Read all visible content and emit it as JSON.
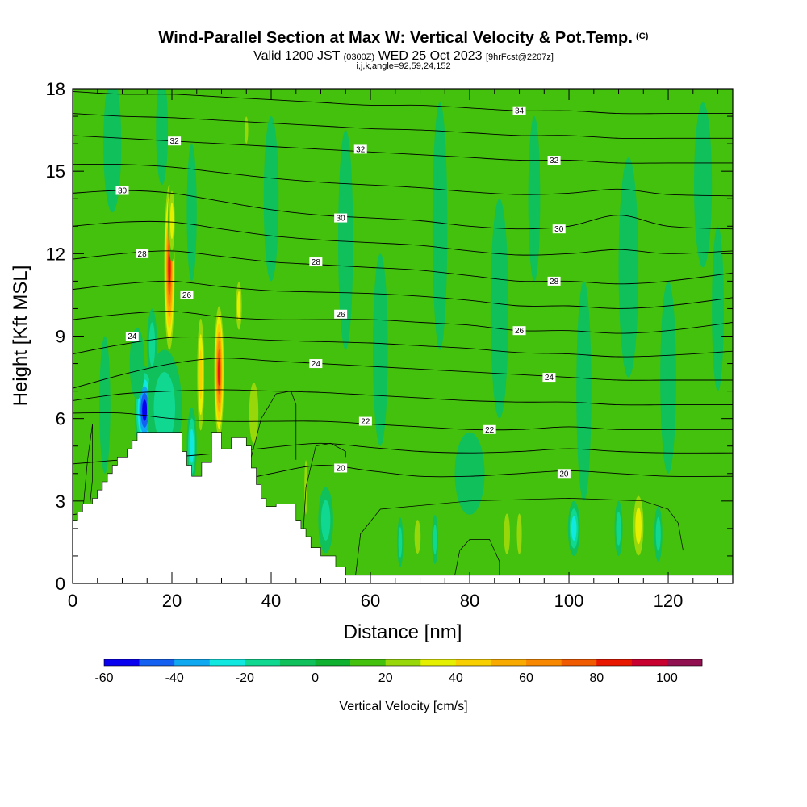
{
  "header": {
    "title": "Wind-Parallel Section at Max W: Vertical Velocity & Pot.Temp.",
    "title_suffix": "(C)",
    "valid_prefix": "Valid 1200 JST",
    "valid_zulu": "(0300Z)",
    "valid_date": "WED 25 Oct 2023",
    "forecast_tag": "[9hrFcst@2207z]",
    "params": "i,j,k,angle=92,59,24,152"
  },
  "chart_data": {
    "type": "heatmap",
    "xlabel": "Distance [nm]",
    "ylabel": "Height [Kft MSL]",
    "xlim": [
      0,
      133
    ],
    "ylim": [
      0,
      18
    ],
    "x_ticks": [
      "0",
      "20",
      "40",
      "60",
      "80",
      "100",
      "120"
    ],
    "y_ticks": [
      "0",
      "3",
      "6",
      "9",
      "12",
      "15",
      "18"
    ],
    "background_w_color": "#44c10c",
    "colorbar": {
      "label": "Vertical Velocity [cm/s]",
      "min": -60,
      "max": 110,
      "step": 10,
      "colors": [
        "#0a00f0",
        "#1460f0",
        "#10a8f0",
        "#10e8e0",
        "#10d890",
        "#10c05a",
        "#10b030",
        "#44c10c",
        "#98d80a",
        "#e4f000",
        "#f8d000",
        "#f8aa00",
        "#f88800",
        "#f05a00",
        "#e81800",
        "#c80030",
        "#901050"
      ],
      "tick_labels": [
        "-60",
        "-40",
        "-20",
        "0",
        "20",
        "40",
        "60",
        "80",
        "100"
      ]
    },
    "terrain": [
      {
        "x": 0,
        "h": 2.3
      },
      {
        "x": 1,
        "h": 2.6
      },
      {
        "x": 2,
        "h": 2.9
      },
      {
        "x": 4,
        "h": 3.1
      },
      {
        "x": 5,
        "h": 3.4
      },
      {
        "x": 6,
        "h": 3.7
      },
      {
        "x": 7,
        "h": 4.0
      },
      {
        "x": 8,
        "h": 4.3
      },
      {
        "x": 9,
        "h": 4.6
      },
      {
        "x": 11,
        "h": 4.9
      },
      {
        "x": 12,
        "h": 5.2
      },
      {
        "x": 13,
        "h": 5.5
      },
      {
        "x": 21,
        "h": 5.5
      },
      {
        "x": 22,
        "h": 4.8
      },
      {
        "x": 23,
        "h": 4.3
      },
      {
        "x": 24,
        "h": 3.9
      },
      {
        "x": 26,
        "h": 4.4
      },
      {
        "x": 28,
        "h": 5.5
      },
      {
        "x": 30,
        "h": 4.9
      },
      {
        "x": 32,
        "h": 5.3
      },
      {
        "x": 35,
        "h": 5.0
      },
      {
        "x": 36,
        "h": 4.2
      },
      {
        "x": 37,
        "h": 3.6
      },
      {
        "x": 38,
        "h": 3.1
      },
      {
        "x": 39,
        "h": 2.8
      },
      {
        "x": 41,
        "h": 2.9
      },
      {
        "x": 45,
        "h": 2.3
      },
      {
        "x": 46,
        "h": 2.0
      },
      {
        "x": 47,
        "h": 1.7
      },
      {
        "x": 48,
        "h": 1.3
      },
      {
        "x": 50,
        "h": 1.0
      },
      {
        "x": 53,
        "h": 0.6
      },
      {
        "x": 55,
        "h": 0.3
      },
      {
        "x": 133,
        "h": 0.3
      }
    ],
    "w_features": [
      {
        "x": 19.5,
        "y": 11.5,
        "rx": 1.2,
        "ry": 3.4,
        "w": 85
      },
      {
        "x": 20,
        "y": 13.2,
        "rx": 0.8,
        "ry": 1.5,
        "w": 35
      },
      {
        "x": 29.5,
        "y": 7.7,
        "rx": 1.1,
        "ry": 2.7,
        "w": 85
      },
      {
        "x": 25.8,
        "y": 7.6,
        "rx": 0.9,
        "ry": 2.6,
        "w": 42
      },
      {
        "x": 33.5,
        "y": 10.1,
        "rx": 0.8,
        "ry": 1.2,
        "w": 30
      },
      {
        "x": 36.5,
        "y": 6.2,
        "rx": 1.5,
        "ry": 1.8,
        "w": 25
      },
      {
        "x": 14.5,
        "y": 6.3,
        "rx": 2.0,
        "ry": 1.6,
        "w": -55
      },
      {
        "x": 20.6,
        "y": 6.5,
        "rx": 1.2,
        "ry": 1.3,
        "w": -55
      },
      {
        "x": 18.5,
        "y": 6.4,
        "rx": 3.5,
        "ry": 2.1,
        "w": -20
      },
      {
        "x": 11,
        "y": 5.8,
        "rx": 1.0,
        "ry": 1.4,
        "w": 18
      },
      {
        "x": 16,
        "y": 8.7,
        "rx": 1.0,
        "ry": 1.3,
        "w": -20
      },
      {
        "x": 24,
        "y": 5.0,
        "rx": 1.0,
        "ry": 1.4,
        "w": -30
      },
      {
        "x": 6.5,
        "y": 6.5,
        "rx": 1.1,
        "ry": 2.5,
        "w": -10
      },
      {
        "x": 47,
        "y": 3.5,
        "rx": 0.5,
        "ry": 1.6,
        "w": 25
      },
      {
        "x": 51,
        "y": 2.3,
        "rx": 1.5,
        "ry": 1.2,
        "w": -20
      },
      {
        "x": 69.5,
        "y": 1.7,
        "rx": 1.0,
        "ry": 1.0,
        "w": 25
      },
      {
        "x": 66,
        "y": 1.5,
        "rx": 0.6,
        "ry": 0.9,
        "w": -18
      },
      {
        "x": 73,
        "y": 1.6,
        "rx": 0.6,
        "ry": 0.9,
        "w": -12
      },
      {
        "x": 87.5,
        "y": 1.8,
        "rx": 1.0,
        "ry": 1.2,
        "w": 25
      },
      {
        "x": 90,
        "y": 1.8,
        "rx": 0.8,
        "ry": 1.2,
        "w": 25
      },
      {
        "x": 97,
        "y": 1.8,
        "rx": 0.8,
        "ry": 1.0,
        "w": 15
      },
      {
        "x": 101,
        "y": 2.0,
        "rx": 1.2,
        "ry": 1.0,
        "w": -30
      },
      {
        "x": 106,
        "y": 1.8,
        "rx": 0.8,
        "ry": 1.0,
        "w": 15
      },
      {
        "x": 114,
        "y": 2.1,
        "rx": 1.4,
        "ry": 1.5,
        "w": 35
      },
      {
        "x": 110,
        "y": 2.0,
        "rx": 0.8,
        "ry": 1.0,
        "w": -15
      },
      {
        "x": 118,
        "y": 1.8,
        "rx": 0.8,
        "ry": 1.0,
        "w": -12
      },
      {
        "x": 132,
        "y": 2.5,
        "rx": 1.0,
        "ry": 1.0,
        "w": 15
      },
      {
        "x": 35,
        "y": 16.5,
        "rx": 0.6,
        "ry": 0.8,
        "w": 20
      },
      {
        "x": 13,
        "y": 8.0,
        "rx": 1.5,
        "ry": 1.3,
        "w": -10
      },
      {
        "x": 8,
        "y": 16.0,
        "rx": 1.8,
        "ry": 2.5,
        "w": -10
      },
      {
        "x": 18,
        "y": 16.5,
        "rx": 1.2,
        "ry": 2.0,
        "w": -10
      },
      {
        "x": 40,
        "y": 14.0,
        "rx": 1.5,
        "ry": 3.0,
        "w": -10
      },
      {
        "x": 55,
        "y": 12.5,
        "rx": 1.5,
        "ry": 4.0,
        "w": -10
      },
      {
        "x": 62,
        "y": 8.5,
        "rx": 1.5,
        "ry": 3.5,
        "w": -10
      },
      {
        "x": 74,
        "y": 13.0,
        "rx": 1.5,
        "ry": 4.5,
        "w": -10
      },
      {
        "x": 86,
        "y": 10.0,
        "rx": 1.8,
        "ry": 4.0,
        "w": -10
      },
      {
        "x": 93,
        "y": 14.0,
        "rx": 1.2,
        "ry": 3.0,
        "w": -10
      },
      {
        "x": 103,
        "y": 7.0,
        "rx": 1.5,
        "ry": 4.0,
        "w": -10
      },
      {
        "x": 112,
        "y": 11.5,
        "rx": 2.0,
        "ry": 4.0,
        "w": -10
      },
      {
        "x": 120,
        "y": 7.5,
        "rx": 1.6,
        "ry": 3.5,
        "w": -10
      },
      {
        "x": 127,
        "y": 14.5,
        "rx": 1.8,
        "ry": 3.0,
        "w": -10
      },
      {
        "x": 80,
        "y": 4.0,
        "rx": 3.0,
        "ry": 1.5,
        "w": -10
      },
      {
        "x": 130,
        "y": 10.0,
        "rx": 1.2,
        "ry": 3.0,
        "w": -10
      },
      {
        "x": 24,
        "y": 13.5,
        "rx": 1.0,
        "ry": 2.5,
        "w": -10
      }
    ],
    "theta_contours": [
      {
        "label": "20",
        "x": [
          0,
          10,
          20,
          30,
          40,
          50,
          60,
          70,
          80,
          90,
          100,
          110,
          120,
          133
        ],
        "y": [
          2.5,
          2.8,
          3.2,
          3.6,
          4.0,
          4.3,
          4.1,
          3.9,
          3.9,
          4.0,
          4.1,
          4.0,
          3.9,
          3.9
        ],
        "label_x": 54,
        "label_y": 4.2
      },
      {
        "label": "22",
        "x": [
          0,
          10,
          20,
          30,
          40,
          50,
          60,
          70,
          80,
          90,
          100,
          110,
          120,
          133
        ],
        "y": [
          6.2,
          6.2,
          6.0,
          5.9,
          5.9,
          5.9,
          5.8,
          5.7,
          5.6,
          5.6,
          5.7,
          5.6,
          5.6,
          5.6
        ],
        "label_x": 59,
        "label_y": 5.9
      },
      {
        "label": "24",
        "x": [
          0,
          10,
          20,
          30,
          40,
          50,
          60,
          70,
          80,
          90,
          100,
          110,
          120,
          133
        ],
        "y": [
          7.1,
          7.6,
          8.0,
          8.2,
          8.1,
          8.0,
          7.9,
          7.8,
          7.7,
          7.6,
          7.5,
          7.4,
          7.4,
          7.4
        ],
        "label_x": 49,
        "label_y": 8.0
      },
      {
        "label": "26",
        "x": [
          0,
          10,
          20,
          30,
          40,
          50,
          60,
          70,
          80,
          90,
          100,
          110,
          120,
          133
        ],
        "y": [
          9.6,
          9.8,
          9.9,
          9.7,
          9.6,
          9.6,
          9.6,
          9.5,
          9.4,
          9.2,
          9.2,
          9.1,
          9.2,
          9.5
        ],
        "label_x": 54,
        "label_y": 9.8
      },
      {
        "label": "28",
        "x": [
          0,
          10,
          20,
          30,
          40,
          50,
          60,
          70,
          80,
          90,
          100,
          110,
          120,
          133
        ],
        "y": [
          11.8,
          12.0,
          12.1,
          11.9,
          11.7,
          11.6,
          11.5,
          11.4,
          11.2,
          11.0,
          11.0,
          10.9,
          11.0,
          11.3
        ],
        "label_x": 49,
        "label_y": 11.7
      },
      {
        "label": "30",
        "x": [
          0,
          10,
          20,
          30,
          40,
          50,
          60,
          70,
          80,
          90,
          100,
          110,
          120,
          133
        ],
        "y": [
          14.2,
          14.3,
          14.2,
          13.9,
          13.6,
          13.4,
          13.3,
          13.2,
          13.0,
          12.9,
          13.0,
          13.4,
          13.0,
          12.9
        ],
        "label_x": 54,
        "label_y": 13.3
      },
      {
        "label": "32",
        "x": [
          0,
          10,
          20,
          30,
          40,
          50,
          60,
          70,
          80,
          90,
          100,
          110,
          120,
          133
        ],
        "y": [
          16.3,
          16.2,
          16.1,
          16.0,
          15.9,
          15.8,
          15.7,
          15.6,
          15.5,
          15.4,
          15.4,
          15.3,
          15.3,
          15.3
        ],
        "label_x": 58,
        "label_y": 15.8
      },
      {
        "label": "34",
        "x": [
          0,
          10,
          20,
          30,
          40,
          50,
          60,
          70,
          80,
          90,
          100,
          110,
          120,
          133
        ],
        "y": [
          17.9,
          17.8,
          17.8,
          17.7,
          17.6,
          17.5,
          17.4,
          17.4,
          17.3,
          17.2,
          17.2,
          17.1,
          17.1,
          17.1
        ],
        "label_x": 90,
        "label_y": 17.2
      }
    ],
    "extra_contour_labels": [
      {
        "label": "32",
        "x": 20.5,
        "y": 16.1
      },
      {
        "label": "30",
        "x": 10,
        "y": 14.3
      },
      {
        "label": "28",
        "x": 14,
        "y": 12.0
      },
      {
        "label": "26",
        "x": 23,
        "y": 10.5
      },
      {
        "label": "24",
        "x": 12,
        "y": 9.0
      },
      {
        "label": "32",
        "x": 97,
        "y": 15.4
      },
      {
        "label": "30",
        "x": 98,
        "y": 12.9
      },
      {
        "label": "28",
        "x": 97,
        "y": 11.0
      },
      {
        "label": "26",
        "x": 90,
        "y": 9.2
      },
      {
        "label": "24",
        "x": 96,
        "y": 7.5
      },
      {
        "label": "22",
        "x": 84,
        "y": 5.6
      },
      {
        "label": "20",
        "x": 99,
        "y": 4.0
      }
    ],
    "w_contours": [
      {
        "x": [
          1,
          2,
          3,
          4,
          4,
          3,
          2,
          1
        ],
        "y": [
          0.6,
          2.5,
          4.5,
          5.8,
          3.8,
          2.0,
          0.6,
          0.6
        ],
        "closed": false
      },
      {
        "x": [
          46,
          47,
          49,
          52,
          55,
          55
        ],
        "y": [
          0.4,
          3.5,
          5.0,
          5.1,
          4.8,
          4.6
        ],
        "closed": false
      },
      {
        "x": [
          36,
          38,
          41,
          44,
          45,
          45
        ],
        "y": [
          4.6,
          6.0,
          6.9,
          7.0,
          6.5,
          4.5
        ],
        "closed": false
      },
      {
        "x": [
          57,
          58,
          62,
          80,
          100,
          115,
          120,
          122,
          123
        ],
        "y": [
          0.3,
          1.8,
          2.7,
          3.0,
          3.1,
          3.0,
          2.7,
          2.2,
          1.2
        ],
        "closed": false
      },
      {
        "x": [
          77,
          78,
          80,
          84,
          85,
          86,
          86
        ],
        "y": [
          0.3,
          1.2,
          1.6,
          1.6,
          1.2,
          0.8,
          0.3
        ],
        "closed": false
      }
    ]
  }
}
